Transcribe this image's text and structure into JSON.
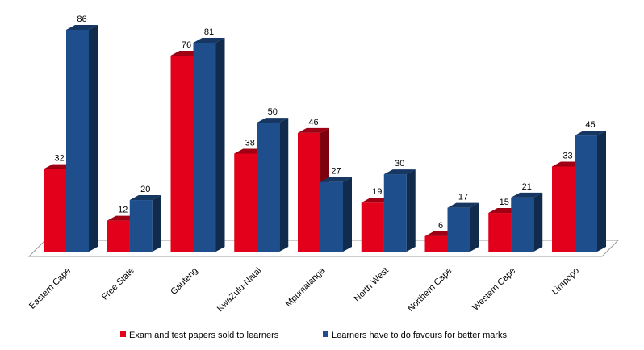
{
  "chart_data": {
    "type": "bar",
    "title": "",
    "xlabel": "",
    "ylabel": "",
    "categories": [
      "Eastern Cape",
      "Free State",
      "Gauteng",
      "KwaZulu-Natal",
      "Mpumalanga",
      "North West",
      "Northern Cape",
      "Western Cape",
      "Limpopo"
    ],
    "series": [
      {
        "name": "Exam and test papers sold to learners",
        "values": [
          32,
          12,
          76,
          38,
          46,
          19,
          6,
          15,
          33
        ],
        "color": "#e3001b"
      },
      {
        "name": "Learners have to do favours for better marks",
        "values": [
          86,
          20,
          81,
          50,
          27,
          30,
          17,
          21,
          45
        ],
        "color": "#1f4e8c"
      }
    ],
    "ylim": [
      0,
      86
    ],
    "grid": false,
    "legend_position": "bottom",
    "data_labels": true,
    "style": "3d-clustered-bar"
  }
}
